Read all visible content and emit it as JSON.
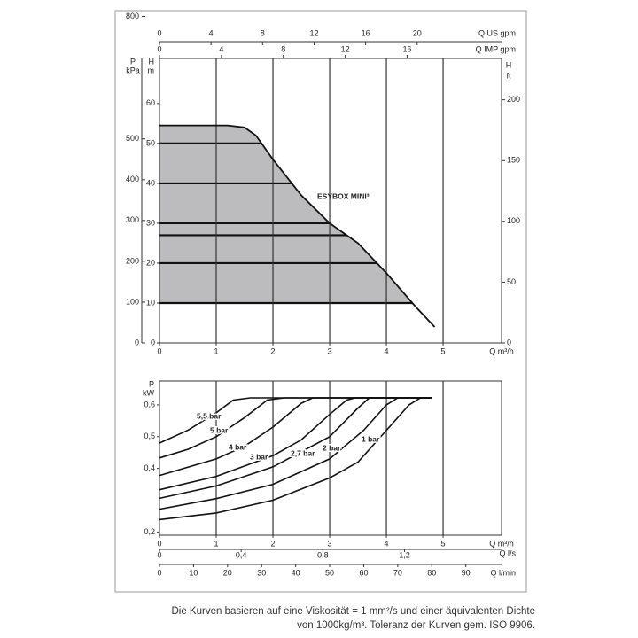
{
  "chart_data": [
    {
      "type": "area",
      "curve_name": "ESYBOX MINI³",
      "x": [
        0,
        1.2,
        1.5,
        1.7,
        2,
        2.5,
        3,
        3.5,
        4,
        4.5,
        4.85
      ],
      "values": [
        54.5,
        54.5,
        54,
        52,
        46,
        37,
        30,
        25,
        17.5,
        9.3,
        4
      ],
      "setpoints": [
        50,
        40,
        30,
        27,
        20,
        10
      ],
      "color": "#111111",
      "fill": "#bcbcbe",
      "xlabel": "Q m³/h",
      "xlim": [
        0,
        6.03
      ],
      "xticks": [
        0,
        1,
        2,
        3,
        4,
        5
      ],
      "ylabel": "H",
      "yunit": "m",
      "ylim": [
        0,
        71.3
      ],
      "yticks": [
        0,
        10,
        20,
        30,
        40,
        50,
        60
      ],
      "grid": true,
      "extra_axes": [
        {
          "side": "left-outer",
          "label": "P",
          "unit": "kPa",
          "lim": [
            0,
            697
          ],
          "ticks": [
            0,
            100,
            200,
            300,
            400,
            500,
            800
          ]
        },
        {
          "side": "right",
          "label": "H",
          "unit": "ft",
          "lim": [
            0,
            234
          ],
          "ticks": [
            0,
            50,
            100,
            150,
            200
          ]
        },
        {
          "side": "top",
          "label": "Q US gpm",
          "lim": [
            0,
            26.55
          ],
          "ticks": [
            0,
            4,
            8,
            12,
            16,
            20
          ]
        },
        {
          "side": "top2",
          "label": "Q IMP gpm",
          "lim": [
            0,
            22.1
          ],
          "ticks": [
            0,
            4,
            8,
            12,
            16
          ]
        }
      ]
    },
    {
      "type": "line",
      "xlabel": "Q m³/h",
      "xlim": [
        0,
        6.03
      ],
      "xticks": [
        0,
        1,
        2,
        3,
        4,
        5
      ],
      "ylabel": "P",
      "yunit": "kW",
      "ylim": [
        0.19,
        0.675
      ],
      "yticks": [
        {
          "value": 0.6,
          "label": "0,6"
        },
        {
          "value": 0.5,
          "label": "0,5"
        },
        {
          "value": 0.4,
          "label": "0,4"
        },
        {
          "value": 0.2,
          "label": "0,2"
        }
      ],
      "grid": true,
      "series": [
        {
          "name": "5,5 bar",
          "color": "#111111",
          "x": [
            0,
            0.5,
            1,
            1.3,
            1.6,
            4.8
          ],
          "values": [
            0.48,
            0.52,
            0.575,
            0.615,
            0.622,
            0.622
          ]
        },
        {
          "name": "5 bar",
          "color": "#111111",
          "x": [
            0,
            0.5,
            1,
            1.5,
            1.9,
            2.2,
            4.8
          ],
          "values": [
            0.433,
            0.46,
            0.5,
            0.56,
            0.615,
            0.622,
            0.622
          ]
        },
        {
          "name": "4 bar",
          "color": "#111111",
          "x": [
            0,
            1,
            1.5,
            2,
            2.5,
            2.7,
            4.8
          ],
          "values": [
            0.378,
            0.43,
            0.47,
            0.53,
            0.605,
            0.622,
            0.622
          ]
        },
        {
          "name": "3 bar",
          "color": "#111111",
          "x": [
            0,
            1,
            2,
            2.5,
            3,
            3.3,
            3.45,
            4.8
          ],
          "values": [
            0.333,
            0.375,
            0.44,
            0.49,
            0.57,
            0.615,
            0.622,
            0.622
          ]
        },
        {
          "name": "2,7 bar",
          "color": "#111111",
          "x": [
            0,
            1,
            2,
            3,
            3.5,
            3.7,
            4.8
          ],
          "values": [
            0.306,
            0.345,
            0.405,
            0.5,
            0.59,
            0.622,
            0.622
          ]
        },
        {
          "name": "2 bar",
          "color": "#111111",
          "x": [
            0,
            1,
            2,
            3,
            3.6,
            4,
            4.2,
            4.8
          ],
          "values": [
            0.272,
            0.305,
            0.35,
            0.43,
            0.52,
            0.6,
            0.622,
            0.622
          ]
        },
        {
          "name": "1 bar",
          "color": "#111111",
          "x": [
            0,
            1,
            2,
            3,
            3.5,
            4,
            4.4,
            4.6,
            4.8
          ],
          "values": [
            0.239,
            0.26,
            0.3,
            0.37,
            0.42,
            0.52,
            0.6,
            0.622,
            0.622
          ]
        }
      ],
      "extra_axes": [
        {
          "side": "bottom2",
          "label": "Q l/s",
          "lim": [
            0,
            1.675
          ],
          "ticks": [
            0,
            {
              "value": 0.4,
              "label": "0,4"
            },
            {
              "value": 0.8,
              "label": "0,8"
            },
            {
              "value": 1.2,
              "label": "1,2"
            }
          ]
        },
        {
          "side": "bottom3",
          "label": "Q l/min",
          "lim": [
            0,
            100.5
          ],
          "ticks": [
            0,
            10,
            20,
            30,
            40,
            50,
            60,
            70,
            80,
            90
          ]
        }
      ]
    }
  ],
  "caption": [
    "Die Kurven basieren auf eine Viskosität = 1 mm²/s und einer äquivalenten Dichte",
    "von 1000kg/m³. Toleranz der Kurven gem. ISO 9906."
  ]
}
